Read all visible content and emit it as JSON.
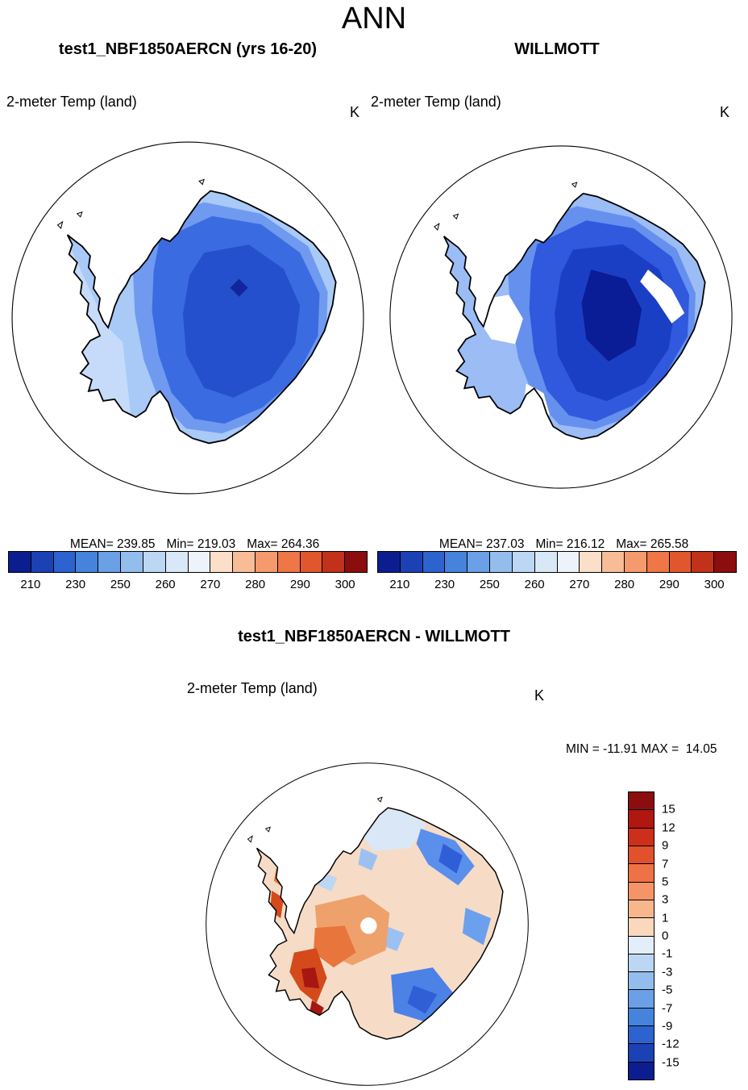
{
  "page_title": "ANN",
  "top_row": {
    "model": {
      "header": "test1_NBF1850AERCN (yrs 16-20)",
      "variable_label": "2-meter Temp (land)",
      "units": "K",
      "stats": {
        "mean_label": "MEAN= 239.85",
        "min_label": "Min= 219.03",
        "max_label": "Max= 264.36"
      }
    },
    "obs": {
      "header": "WILLMOTT",
      "variable_label": "2-meter Temp (land)",
      "units": "K",
      "stats": {
        "mean_label": "MEAN= 237.03",
        "min_label": "Min= 216.12",
        "max_label": "Max= 265.58"
      }
    }
  },
  "bottom": {
    "header": "test1_NBF1850AERCN - WILLMOTT",
    "variable_label": "2-meter Temp (land)",
    "units": "K",
    "range_label": "MIN = -11.91 MAX =  14.05"
  },
  "shared_colorbar": {
    "orientation": "horizontal",
    "colors": [
      "#0c1e8f",
      "#1b41b5",
      "#2c63cf",
      "#4583dd",
      "#6ba0e6",
      "#93bdec",
      "#bcd7f3",
      "#d8e8f7",
      "#eef3fb",
      "#fbdfc8",
      "#f8bd97",
      "#f49a6c",
      "#ee7647",
      "#e0572e",
      "#c2311a",
      "#8c0d0d"
    ],
    "ticks": [
      {
        "label": "210",
        "pos": 0.0625
      },
      {
        "label": "230",
        "pos": 0.1875
      },
      {
        "label": "250",
        "pos": 0.3125
      },
      {
        "label": "260",
        "pos": 0.4375
      },
      {
        "label": "270",
        "pos": 0.5625
      },
      {
        "label": "280",
        "pos": 0.6875
      },
      {
        "label": "290",
        "pos": 0.8125
      },
      {
        "label": "300",
        "pos": 0.9375
      }
    ]
  },
  "diff_colorbar": {
    "orientation": "vertical",
    "colors": [
      "#8c0d0d",
      "#b01710",
      "#cc2f1a",
      "#e0512c",
      "#ee7245",
      "#f49467",
      "#f8b68d",
      "#fbd8bb",
      "#e3eefb",
      "#bcd7f3",
      "#93bdec",
      "#6ba0e6",
      "#4583dd",
      "#2c63cf",
      "#1b41b5",
      "#0c1e8f"
    ],
    "ticks": [
      {
        "label": "15",
        "pos": 0.0625
      },
      {
        "label": "12",
        "pos": 0.125
      },
      {
        "label": "9",
        "pos": 0.1875
      },
      {
        "label": "7",
        "pos": 0.25
      },
      {
        "label": "5",
        "pos": 0.3125
      },
      {
        "label": "3",
        "pos": 0.375
      },
      {
        "label": "1",
        "pos": 0.4375
      },
      {
        "label": "0",
        "pos": 0.5
      },
      {
        "label": "-1",
        "pos": 0.5625
      },
      {
        "label": "-3",
        "pos": 0.625
      },
      {
        "label": "-5",
        "pos": 0.6875
      },
      {
        "label": "-7",
        "pos": 0.75
      },
      {
        "label": "-9",
        "pos": 0.8125
      },
      {
        "label": "-12",
        "pos": 0.875
      },
      {
        "label": "-15",
        "pos": 0.9375
      }
    ]
  },
  "chart_data": [
    {
      "type": "heatmap",
      "panel": "model",
      "title": "test1_NBF1850AERCN (yrs 16-20)",
      "variable": "2-meter Temp (land)",
      "units": "K",
      "projection": "south polar stereographic (Antarctica)",
      "mean": 239.85,
      "min": 219.03,
      "max": 264.36,
      "contour_levels": [
        210,
        220,
        230,
        240,
        250,
        255,
        260,
        265,
        270,
        275,
        280,
        285,
        290,
        295,
        300
      ],
      "tick_labels": [
        210,
        230,
        250,
        260,
        270,
        280,
        290,
        300
      ],
      "legend_position": "bottom"
    },
    {
      "type": "heatmap",
      "panel": "observation",
      "title": "WILLMOTT",
      "variable": "2-meter Temp (land)",
      "units": "K",
      "projection": "south polar stereographic (Antarctica)",
      "mean": 237.03,
      "min": 216.12,
      "max": 265.58,
      "contour_levels": [
        210,
        220,
        230,
        240,
        250,
        255,
        260,
        265,
        270,
        275,
        280,
        285,
        290,
        295,
        300
      ],
      "tick_labels": [
        210,
        230,
        250,
        260,
        270,
        280,
        290,
        300
      ],
      "legend_position": "bottom"
    },
    {
      "type": "heatmap",
      "panel": "difference",
      "title": "test1_NBF1850AERCN - WILLMOTT",
      "variable": "2-meter Temp (land)",
      "units": "K",
      "projection": "south polar stereographic (Antarctica)",
      "min": -11.91,
      "max": 14.05,
      "contour_levels": [
        -15,
        -12,
        -9,
        -7,
        -5,
        -3,
        -1,
        0,
        1,
        3,
        5,
        7,
        9,
        12,
        15
      ],
      "legend_position": "right"
    }
  ]
}
